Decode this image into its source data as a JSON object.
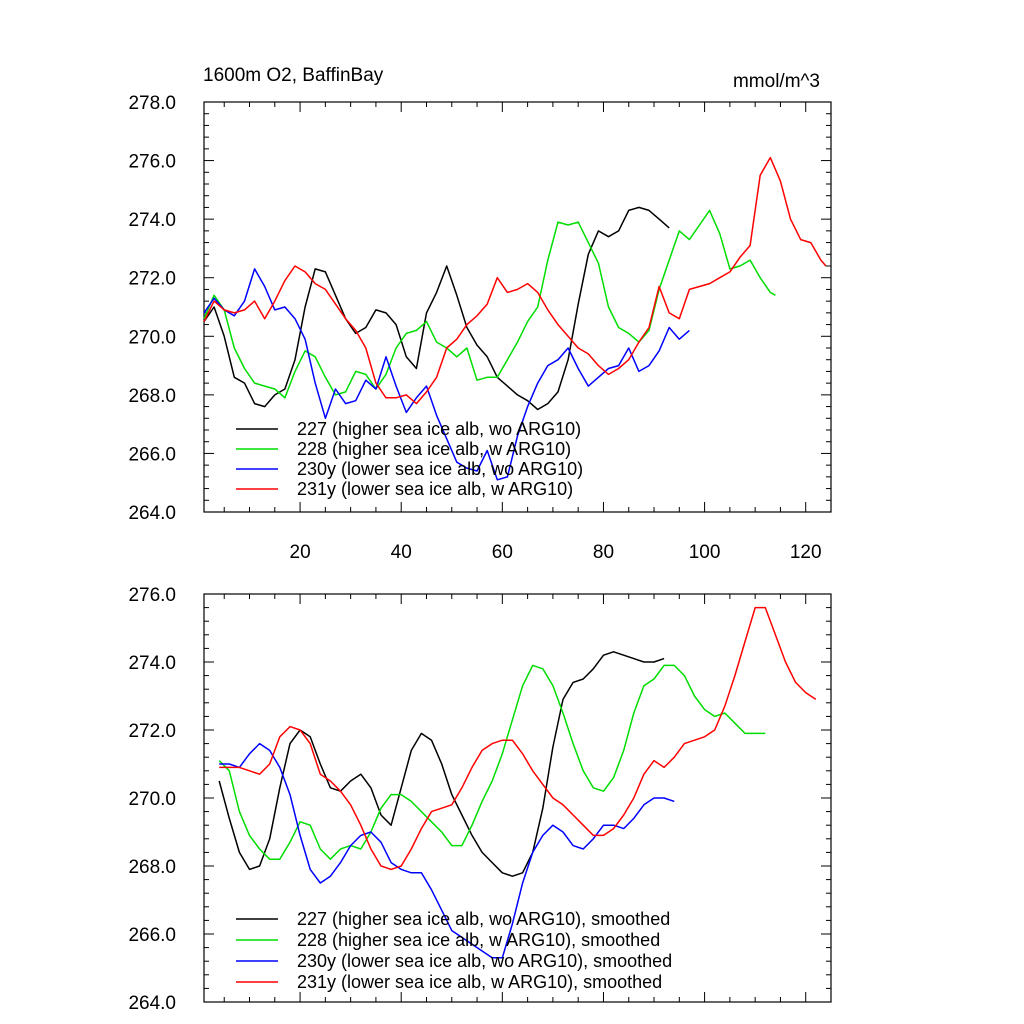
{
  "chart_data": [
    {
      "type": "line",
      "title": "1600m O2, BaffinBay",
      "units_label": "mmol/m^3",
      "xlim": [
        1,
        125
      ],
      "ylim": [
        264.0,
        278.0
      ],
      "xticks": [
        20,
        40,
        60,
        80,
        100,
        120
      ],
      "xtick_labels": [
        "20",
        "40",
        "60",
        "80",
        "100",
        "120"
      ],
      "yticks": [
        264.0,
        266.0,
        268.0,
        270.0,
        272.0,
        274.0,
        276.0,
        278.0
      ],
      "ytick_labels": [
        "264.0",
        "266.0",
        "268.0",
        "270.0",
        "272.0",
        "274.0",
        "276.0",
        "278.0"
      ],
      "legend_placement": "bottom-left",
      "series": [
        {
          "name": "227 (higher sea ice alb, wo ARG10)",
          "color": "#000000",
          "x": [
            1,
            3,
            5,
            7,
            9,
            11,
            13,
            15,
            17,
            19,
            21,
            23,
            25,
            27,
            29,
            31,
            33,
            35,
            37,
            39,
            41,
            43,
            45,
            47,
            49,
            51,
            53,
            55,
            57,
            59,
            61,
            63,
            65,
            67,
            69,
            71,
            73,
            75,
            77,
            79,
            81,
            83,
            85,
            87,
            89,
            91,
            93
          ],
          "y": [
            270.5,
            271.0,
            270.0,
            268.6,
            268.4,
            267.7,
            267.6,
            268.0,
            268.2,
            269.2,
            271.0,
            272.3,
            272.2,
            271.4,
            270.6,
            270.1,
            270.3,
            270.9,
            270.8,
            270.4,
            269.3,
            268.9,
            270.8,
            271.5,
            272.4,
            271.4,
            270.3,
            269.7,
            269.3,
            268.6,
            268.3,
            268.0,
            267.8,
            267.5,
            267.7,
            268.1,
            269.2,
            271.1,
            272.8,
            273.6,
            273.4,
            273.6,
            274.3,
            274.4,
            274.3,
            274.0,
            273.7
          ]
        },
        {
          "name": "228 (higher sea ice alb, w ARG10)",
          "color": "#00dd00",
          "x": [
            1,
            3,
            5,
            7,
            9,
            11,
            13,
            15,
            17,
            19,
            21,
            23,
            25,
            27,
            29,
            31,
            33,
            35,
            37,
            39,
            41,
            43,
            45,
            47,
            49,
            51,
            53,
            55,
            57,
            59,
            61,
            63,
            65,
            67,
            69,
            71,
            73,
            75,
            77,
            79,
            81,
            83,
            85,
            87,
            89,
            91,
            93,
            95,
            97,
            99,
            101,
            103,
            105,
            107,
            109,
            111,
            113,
            114
          ],
          "y": [
            270.6,
            271.4,
            270.9,
            269.6,
            268.9,
            268.4,
            268.3,
            268.2,
            267.9,
            268.8,
            269.5,
            269.3,
            268.6,
            268.0,
            268.1,
            268.8,
            268.7,
            268.2,
            268.7,
            269.6,
            270.1,
            270.2,
            270.5,
            269.8,
            269.6,
            269.3,
            269.6,
            268.5,
            268.6,
            268.6,
            269.2,
            269.8,
            270.5,
            271.0,
            272.6,
            273.9,
            273.8,
            273.9,
            273.2,
            272.5,
            271.0,
            270.3,
            270.1,
            269.8,
            270.2,
            271.6,
            272.6,
            273.6,
            273.3,
            273.8,
            274.3,
            273.5,
            272.3,
            272.4,
            272.6,
            272.0,
            271.5,
            271.4
          ]
        },
        {
          "name": "230y (lower sea ice alb, wo ARG10)",
          "color": "#0000ff",
          "x": [
            1,
            3,
            5,
            7,
            9,
            11,
            13,
            15,
            17,
            19,
            21,
            23,
            25,
            27,
            29,
            31,
            33,
            35,
            37,
            39,
            41,
            43,
            45,
            47,
            49,
            51,
            53,
            55,
            57,
            59,
            61,
            63,
            65,
            67,
            69,
            71,
            73,
            75,
            77,
            79,
            81,
            83,
            85,
            87,
            89,
            91,
            93,
            95,
            97
          ],
          "y": [
            270.8,
            271.3,
            270.9,
            270.7,
            271.2,
            272.3,
            271.7,
            270.9,
            271.0,
            270.6,
            269.9,
            268.4,
            267.2,
            268.2,
            267.7,
            267.8,
            268.5,
            268.2,
            269.3,
            268.3,
            267.4,
            267.9,
            268.3,
            267.3,
            266.5,
            265.7,
            265.5,
            265.4,
            266.1,
            265.1,
            265.2,
            266.6,
            267.6,
            268.4,
            269.0,
            269.2,
            269.6,
            268.9,
            268.3,
            268.6,
            268.9,
            269.0,
            269.6,
            268.8,
            269.0,
            269.5,
            270.3,
            269.9,
            270.2
          ]
        },
        {
          "name": "231y (lower sea ice alb, w ARG10)",
          "color": "#ff0000",
          "x": [
            1,
            3,
            5,
            7,
            9,
            11,
            13,
            15,
            17,
            19,
            21,
            23,
            25,
            27,
            29,
            31,
            33,
            35,
            37,
            39,
            41,
            43,
            45,
            47,
            49,
            51,
            53,
            55,
            57,
            59,
            61,
            63,
            65,
            67,
            69,
            71,
            73,
            75,
            77,
            79,
            81,
            83,
            85,
            87,
            89,
            91,
            93,
            95,
            97,
            99,
            101,
            103,
            105,
            107,
            109,
            111,
            113,
            115,
            117,
            119,
            121,
            123,
            124
          ],
          "y": [
            270.5,
            271.2,
            270.9,
            270.8,
            270.9,
            271.2,
            270.6,
            271.2,
            271.9,
            272.4,
            272.2,
            271.8,
            271.6,
            271.1,
            270.6,
            270.2,
            269.6,
            268.4,
            267.9,
            267.9,
            268.0,
            267.7,
            268.1,
            268.6,
            269.6,
            269.9,
            270.4,
            270.7,
            271.1,
            272.0,
            271.5,
            271.6,
            271.8,
            271.5,
            270.9,
            270.4,
            270.0,
            269.6,
            269.4,
            269.0,
            268.7,
            268.9,
            269.2,
            269.8,
            270.3,
            271.7,
            270.8,
            270.6,
            271.6,
            271.7,
            271.8,
            272.0,
            272.2,
            272.7,
            273.1,
            275.5,
            276.1,
            275.3,
            274.0,
            273.3,
            273.2,
            272.6,
            272.4
          ]
        }
      ]
    },
    {
      "type": "line",
      "xlim": [
        1,
        125
      ],
      "ylim": [
        264.0,
        276.0
      ],
      "xticks": [
        20,
        40,
        60,
        80,
        100,
        120
      ],
      "yticks": [
        264.0,
        266.0,
        268.0,
        270.0,
        272.0,
        274.0,
        276.0
      ],
      "ytick_labels": [
        "264.0",
        "266.0",
        "268.0",
        "270.0",
        "272.0",
        "274.0",
        "276.0"
      ],
      "legend_placement": "bottom-left",
      "series": [
        {
          "name": "227 (higher sea ice alb, wo ARG10), smoothed",
          "color": "#000000",
          "x": [
            4,
            6,
            8,
            10,
            12,
            14,
            16,
            18,
            20,
            22,
            24,
            26,
            28,
            30,
            32,
            34,
            36,
            38,
            40,
            42,
            44,
            46,
            48,
            50,
            52,
            54,
            56,
            58,
            60,
            62,
            64,
            66,
            68,
            70,
            72,
            74,
            76,
            78,
            80,
            82,
            84,
            86,
            88,
            90,
            92
          ],
          "y": [
            270.5,
            269.4,
            268.4,
            267.9,
            268.0,
            268.8,
            270.3,
            271.6,
            272.0,
            271.8,
            271.0,
            270.3,
            270.2,
            270.5,
            270.7,
            270.3,
            269.5,
            269.2,
            270.3,
            271.4,
            271.9,
            271.7,
            271.0,
            270.1,
            269.5,
            268.9,
            268.4,
            268.1,
            267.8,
            267.7,
            267.8,
            268.4,
            269.7,
            271.5,
            272.9,
            273.4,
            273.5,
            273.8,
            274.2,
            274.3,
            274.2,
            274.1,
            274.0,
            274.0,
            274.1
          ]
        },
        {
          "name": "228 (higher sea ice alb, w ARG10), smoothed",
          "color": "#00dd00",
          "x": [
            4,
            6,
            8,
            10,
            12,
            14,
            16,
            18,
            20,
            22,
            24,
            26,
            28,
            30,
            32,
            34,
            36,
            38,
            40,
            42,
            44,
            46,
            48,
            50,
            52,
            54,
            56,
            58,
            60,
            62,
            64,
            66,
            68,
            70,
            72,
            74,
            76,
            78,
            80,
            82,
            84,
            86,
            88,
            90,
            92,
            94,
            96,
            98,
            100,
            102,
            104,
            106,
            108,
            110,
            112
          ],
          "y": [
            271.1,
            270.8,
            269.6,
            268.9,
            268.5,
            268.2,
            268.2,
            268.7,
            269.3,
            269.2,
            268.5,
            268.2,
            268.5,
            268.6,
            268.5,
            269.0,
            269.7,
            270.1,
            270.1,
            269.9,
            269.6,
            269.3,
            269.0,
            268.6,
            268.6,
            269.2,
            269.9,
            270.5,
            271.3,
            272.3,
            273.3,
            273.9,
            273.8,
            273.3,
            272.5,
            271.6,
            270.8,
            270.3,
            270.2,
            270.6,
            271.4,
            272.5,
            273.3,
            273.5,
            273.9,
            273.9,
            273.6,
            273.0,
            272.6,
            272.4,
            272.5,
            272.2,
            271.9,
            271.9,
            271.9
          ]
        },
        {
          "name": "230y (lower sea ice alb, wo ARG10), smoothed",
          "color": "#0000ff",
          "x": [
            4,
            6,
            8,
            10,
            12,
            14,
            16,
            18,
            20,
            22,
            24,
            26,
            28,
            30,
            32,
            34,
            36,
            38,
            40,
            42,
            44,
            46,
            48,
            50,
            52,
            54,
            56,
            58,
            60,
            62,
            64,
            66,
            68,
            70,
            72,
            74,
            76,
            78,
            80,
            82,
            84,
            86,
            88,
            90,
            92,
            94
          ],
          "y": [
            271.0,
            271.0,
            270.9,
            271.3,
            271.6,
            271.4,
            270.9,
            270.1,
            268.9,
            267.9,
            267.5,
            267.7,
            268.1,
            268.6,
            268.9,
            269.0,
            268.7,
            268.1,
            267.9,
            267.8,
            267.8,
            267.3,
            266.7,
            266.1,
            265.9,
            265.7,
            265.5,
            265.3,
            265.3,
            266.3,
            267.5,
            268.4,
            268.9,
            269.2,
            269.0,
            268.6,
            268.5,
            268.8,
            269.2,
            269.2,
            269.1,
            269.4,
            269.8,
            270.0,
            270.0,
            269.9
          ]
        },
        {
          "name": "231y (lower sea ice alb, w ARG10), smoothed",
          "color": "#ff0000",
          "x": [
            4,
            6,
            8,
            10,
            12,
            14,
            16,
            18,
            20,
            22,
            24,
            26,
            28,
            30,
            32,
            34,
            36,
            38,
            40,
            42,
            44,
            46,
            48,
            50,
            52,
            54,
            56,
            58,
            60,
            62,
            64,
            66,
            68,
            70,
            72,
            74,
            76,
            78,
            80,
            82,
            84,
            86,
            88,
            90,
            92,
            94,
            96,
            98,
            100,
            102,
            104,
            106,
            108,
            110,
            112,
            114,
            116,
            118,
            120,
            122
          ],
          "y": [
            270.9,
            270.9,
            270.9,
            270.8,
            270.7,
            271.0,
            271.8,
            272.1,
            272.0,
            271.6,
            270.7,
            270.5,
            270.2,
            269.8,
            269.2,
            268.5,
            268.0,
            267.9,
            268.0,
            268.5,
            269.1,
            269.6,
            269.7,
            269.8,
            270.3,
            270.9,
            271.4,
            271.6,
            271.7,
            271.7,
            271.3,
            270.8,
            270.4,
            270.0,
            269.8,
            269.5,
            269.2,
            268.9,
            268.9,
            269.1,
            269.5,
            270.0,
            270.7,
            271.1,
            270.9,
            271.2,
            271.6,
            271.7,
            271.8,
            272.0,
            272.7,
            273.6,
            274.6,
            275.6,
            275.6,
            274.8,
            274.0,
            273.4,
            273.1,
            272.9
          ]
        }
      ]
    }
  ]
}
